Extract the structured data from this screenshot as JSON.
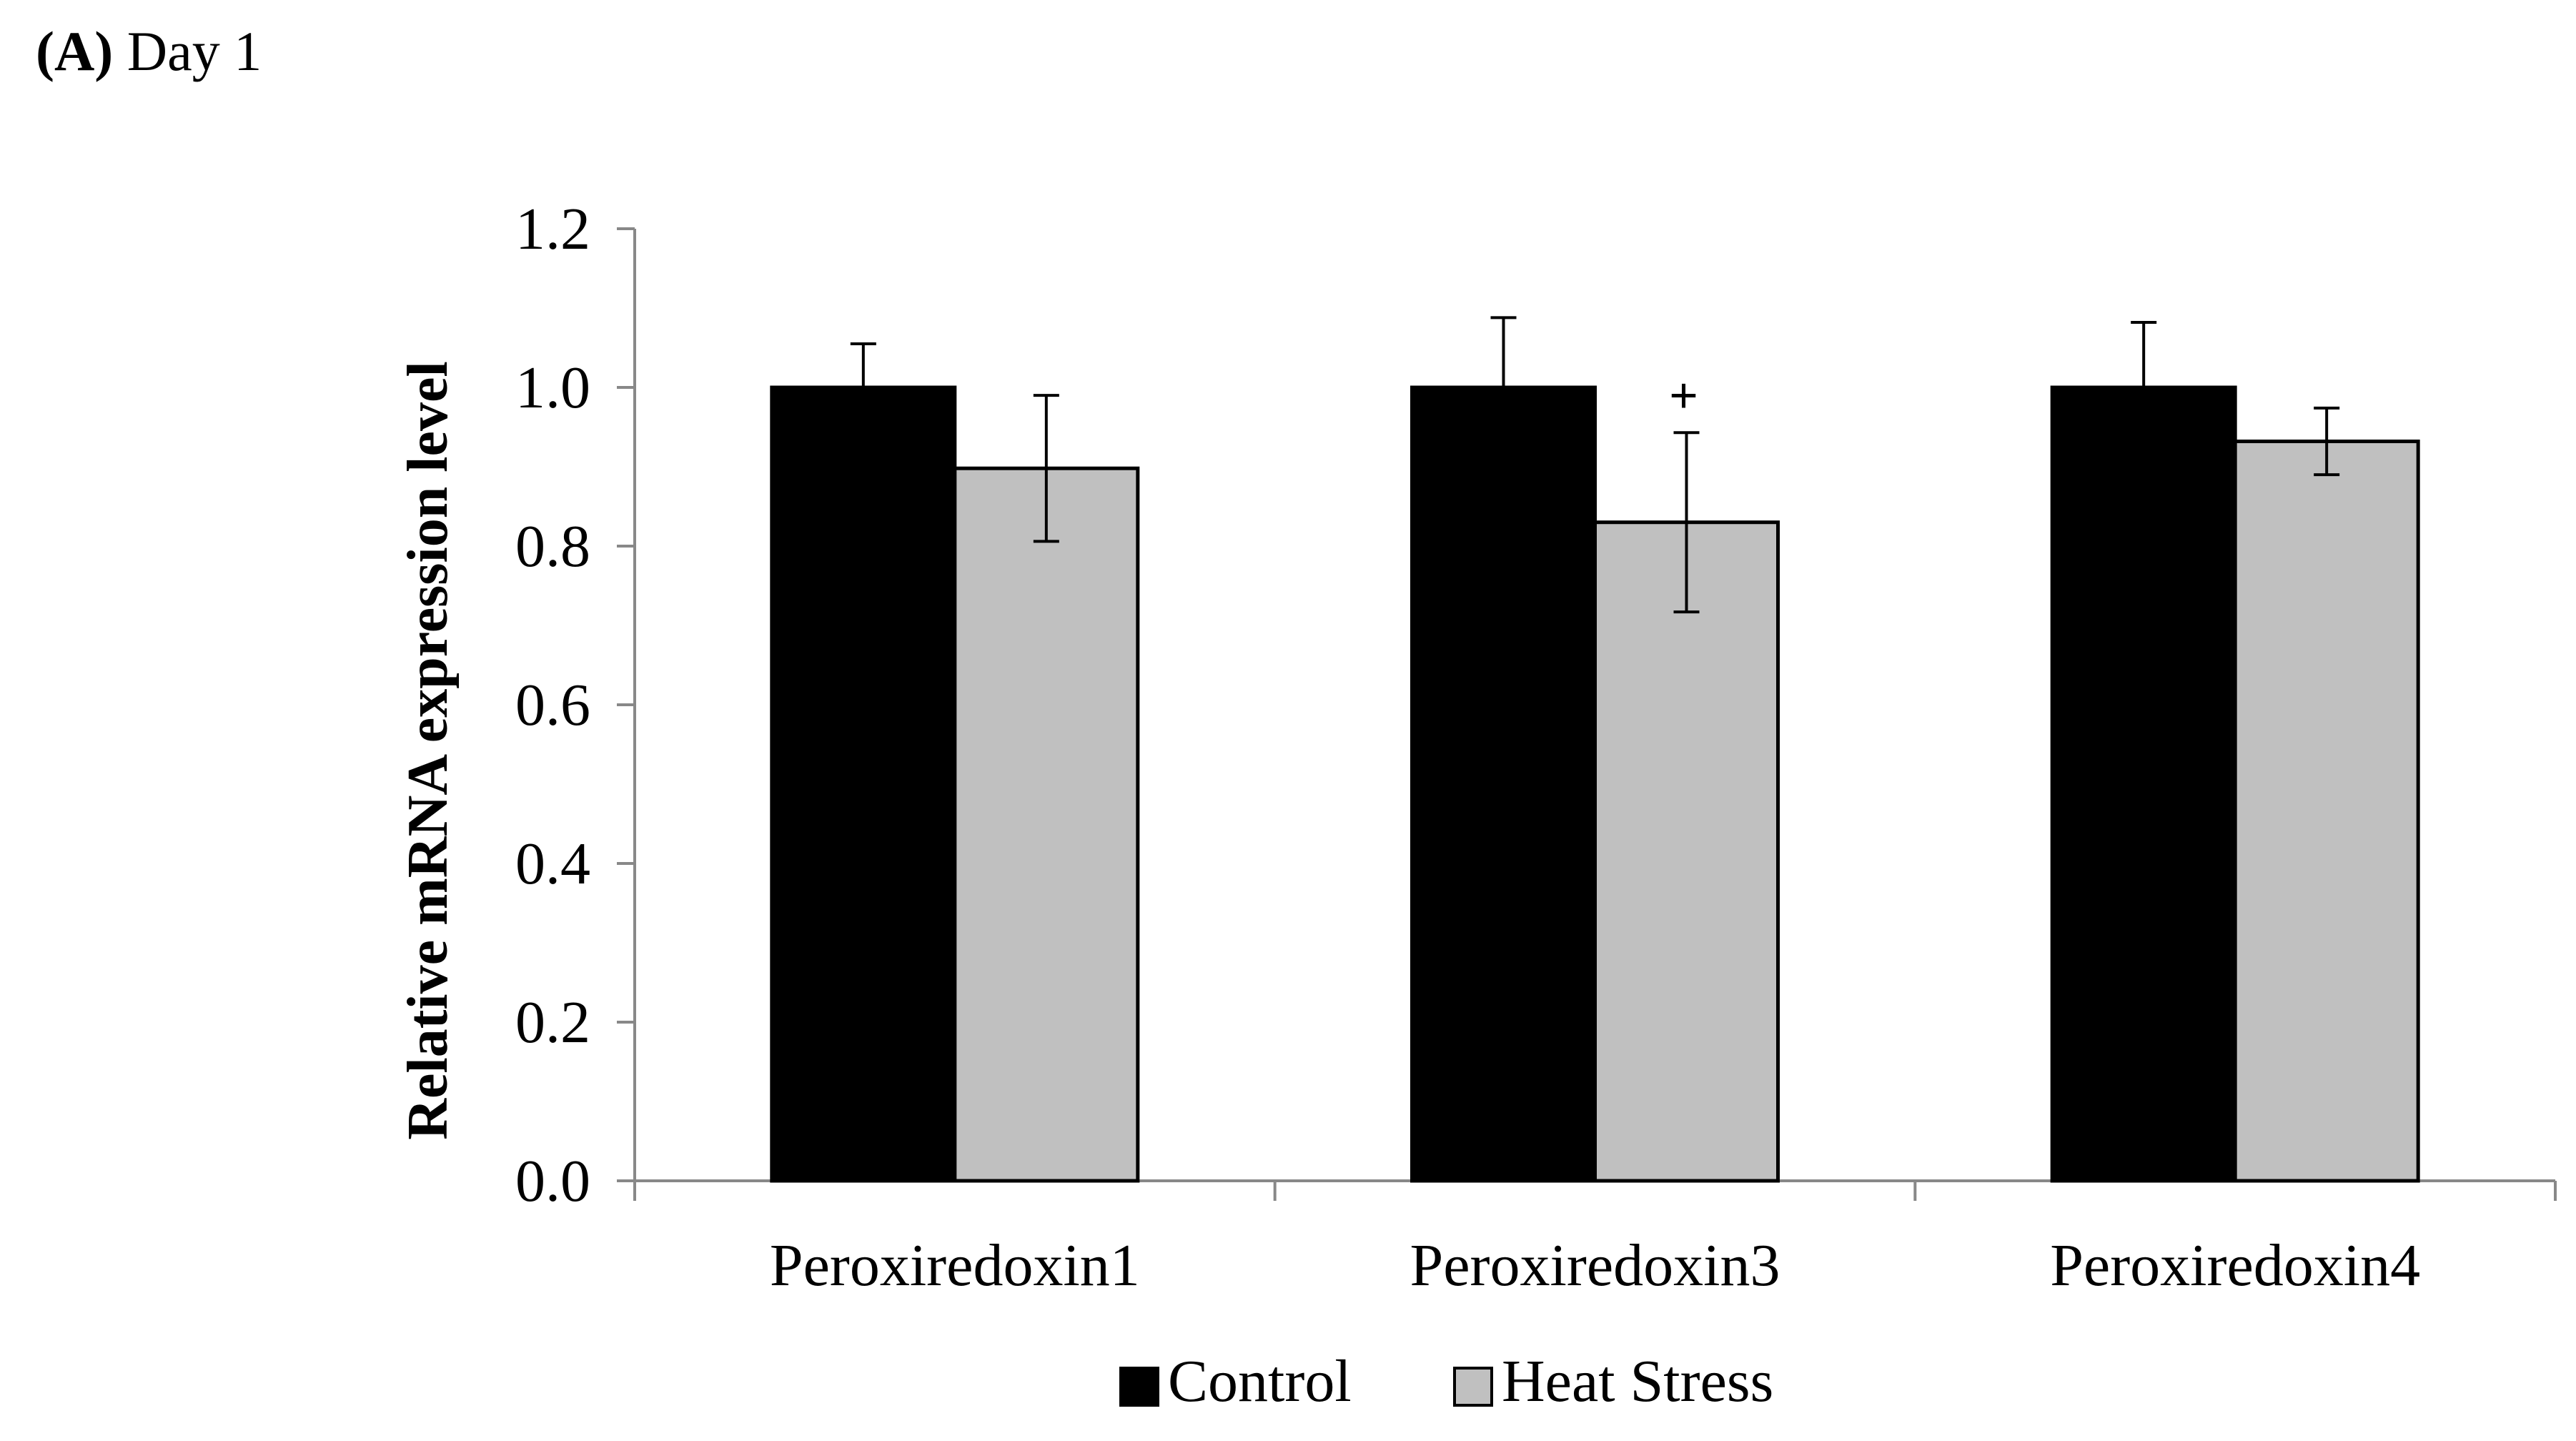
{
  "panel": {
    "letter": "(A)",
    "title": "Day 1"
  },
  "chart_data": {
    "type": "bar",
    "title": "Day 1",
    "xlabel": "",
    "ylabel": "Relative mRNA expression level",
    "ylim": [
      0,
      1.2
    ],
    "yticks": [
      "0.0",
      "0.2",
      "0.4",
      "0.6",
      "0.8",
      "1.0",
      "1.2"
    ],
    "categories": [
      "Peroxiredoxin1",
      "Peroxiredoxin3",
      "Peroxiredoxin4"
    ],
    "series": [
      {
        "name": "Control",
        "color": "#000000",
        "values": [
          1.0,
          1.0,
          1.0
        ],
        "errors": [
          0.055,
          0.088,
          0.082
        ]
      },
      {
        "name": "Heat Stress",
        "color": "#c0c0c0",
        "values": [
          0.898,
          0.83,
          0.932
        ],
        "errors": [
          0.092,
          0.113,
          0.042
        ]
      }
    ],
    "annotations": [
      {
        "category": "Peroxiredoxin3",
        "series": "Heat Stress",
        "text": "+"
      }
    ],
    "grid": false,
    "legend": "bottom"
  }
}
